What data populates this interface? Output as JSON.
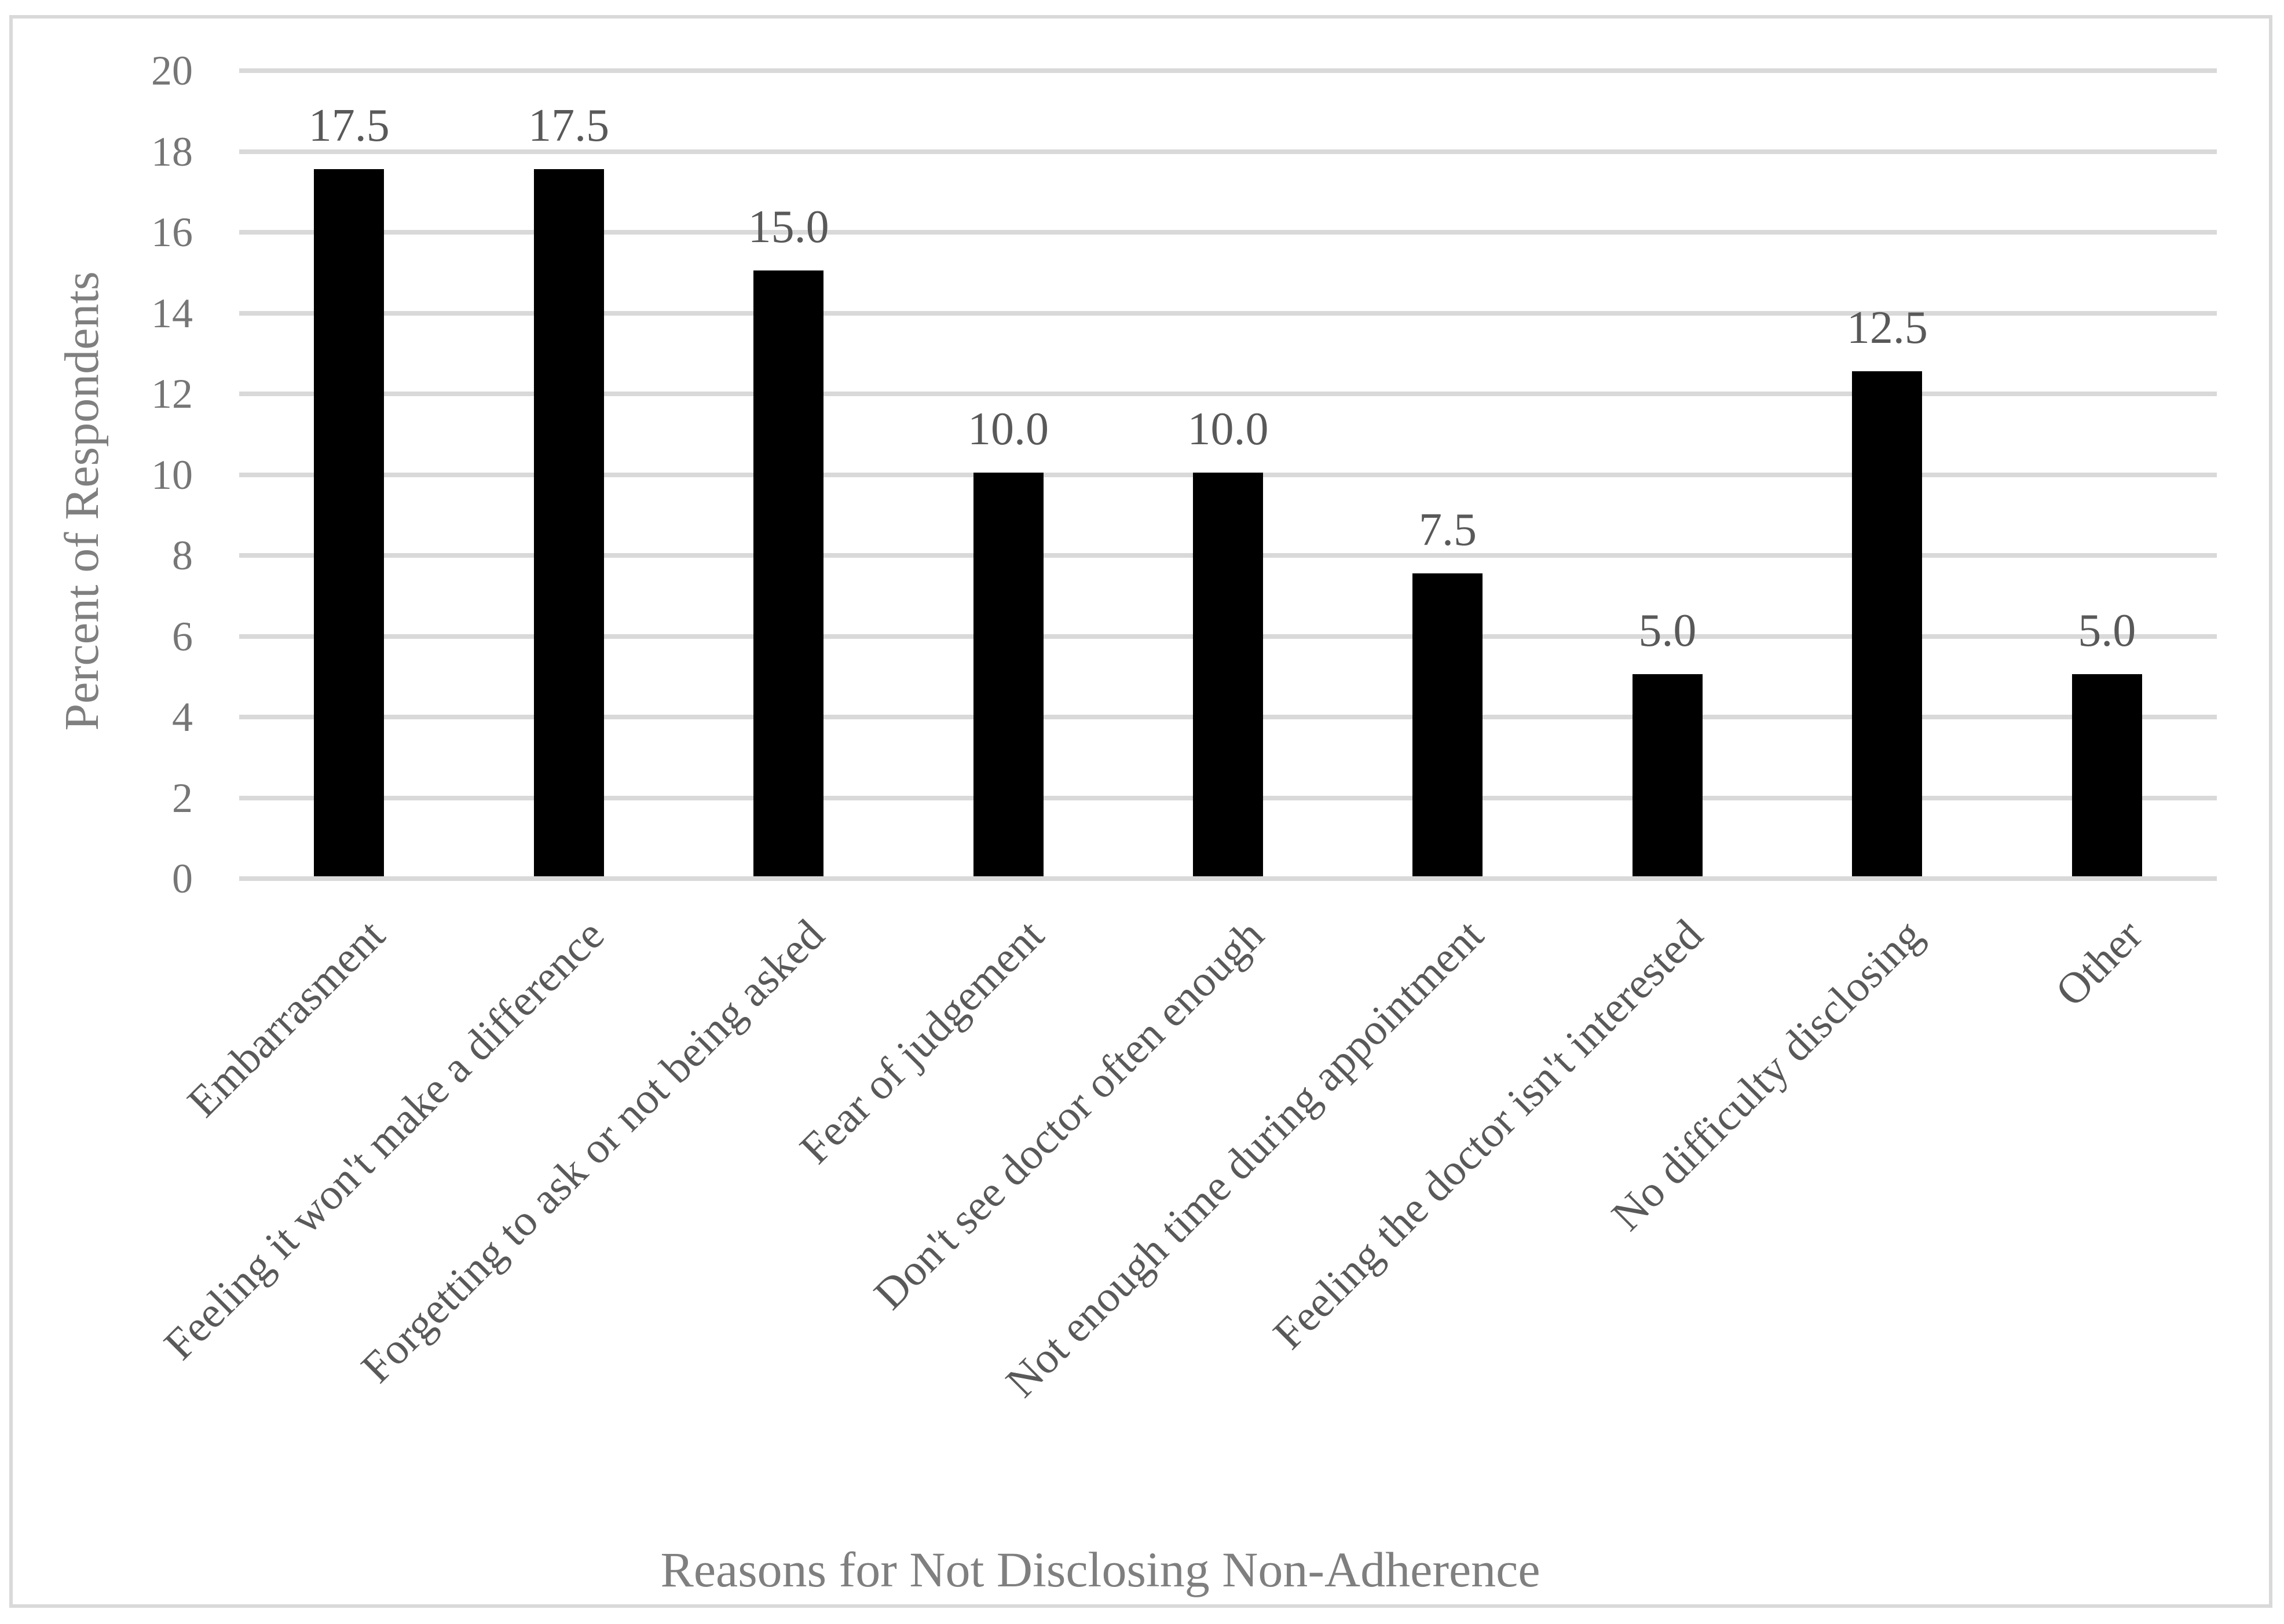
{
  "chart_data": {
    "type": "bar",
    "title": "",
    "xlabel": "Reasons for Not Disclosing Non-Adherence",
    "ylabel": "Percent of Respondents",
    "categories": [
      "Embarrasment",
      "Feeling it won't make a difference",
      "Forgetting to ask or not being asked",
      "Fear of judgement",
      "Don't see doctor often enough",
      "Not enough time during appointment",
      "Feeling the doctor isn't interested",
      "No difficulty disclosing",
      "Other"
    ],
    "values": [
      17.5,
      17.5,
      15.0,
      10.0,
      10.0,
      7.5,
      5.0,
      12.5,
      5.0
    ],
    "value_labels": [
      "17.5",
      "17.5",
      "15.0",
      "10.0",
      "10.0",
      "7.5",
      "5.0",
      "12.5",
      "5.0"
    ],
    "ylim": [
      0,
      20
    ],
    "y_ticks": [
      0,
      2,
      4,
      6,
      8,
      10,
      12,
      14,
      16,
      18,
      20
    ],
    "grid": true,
    "legend": false,
    "colors": {
      "bar": "#000000",
      "gridline": "#d9d9d9",
      "tick_label": "#767676",
      "value_label": "#595959",
      "category_label": "#595959",
      "axis_title": "#7f7f7f",
      "frame_border": "#d9d9d9",
      "background": "#ffffff"
    }
  }
}
